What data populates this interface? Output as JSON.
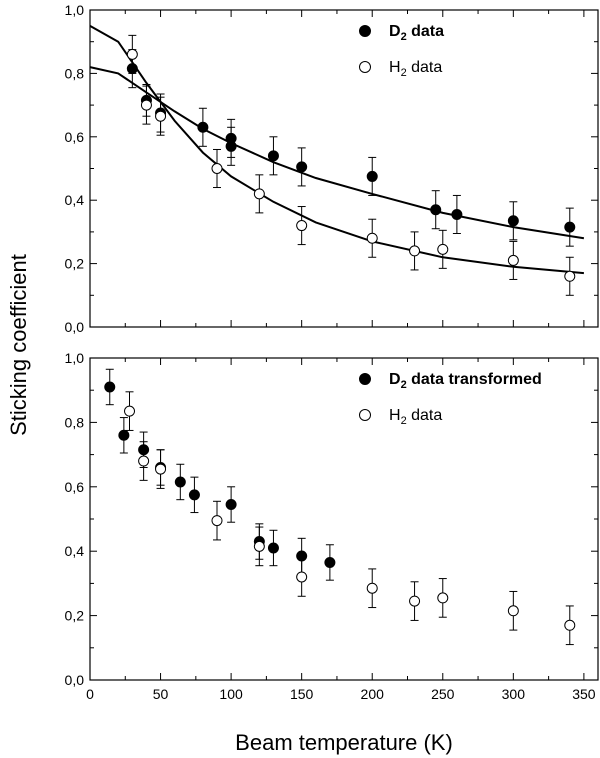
{
  "chart_data": [
    {
      "type": "scatter",
      "panel": "top",
      "xlim": [
        0,
        360
      ],
      "ylim": [
        0.0,
        1.0
      ],
      "yticks": [
        "0,0",
        "0,2",
        "0,4",
        "0,6",
        "0,8",
        "1,0"
      ],
      "legend_position": "top-right",
      "series": [
        {
          "name": "D",
          "name_sub": "2",
          "name_suffix": " data",
          "bold": true,
          "marker": "filled-circle",
          "x": [
            30,
            40,
            50,
            80,
            100,
            100,
            130,
            150,
            200,
            245,
            260,
            300,
            340
          ],
          "y": [
            0.815,
            0.715,
            0.675,
            0.63,
            0.595,
            0.57,
            0.54,
            0.505,
            0.475,
            0.37,
            0.355,
            0.335,
            0.315
          ],
          "err": [
            0.06,
            0.05,
            0.06,
            0.06,
            0.06,
            0.06,
            0.06,
            0.06,
            0.06,
            0.06,
            0.06,
            0.06,
            0.06
          ]
        },
        {
          "name": "H",
          "name_sub": "2",
          "name_suffix": " data",
          "bold": false,
          "marker": "open-circle",
          "x": [
            30,
            40,
            50,
            90,
            120,
            150,
            200,
            230,
            250,
            300,
            340
          ],
          "y": [
            0.86,
            0.7,
            0.665,
            0.5,
            0.42,
            0.32,
            0.28,
            0.24,
            0.245,
            0.21,
            0.16
          ],
          "err": [
            0.06,
            0.06,
            0.06,
            0.06,
            0.06,
            0.06,
            0.06,
            0.06,
            0.06,
            0.06,
            0.06
          ]
        }
      ],
      "fits": [
        {
          "for": "D2",
          "x": [
            0,
            20,
            40,
            60,
            80,
            100,
            130,
            160,
            200,
            250,
            300,
            350
          ],
          "y": [
            0.82,
            0.8,
            0.74,
            0.68,
            0.625,
            0.58,
            0.52,
            0.47,
            0.42,
            0.36,
            0.315,
            0.28
          ]
        },
        {
          "for": "H2",
          "x": [
            0,
            20,
            40,
            60,
            80,
            100,
            130,
            160,
            200,
            250,
            300,
            350
          ],
          "y": [
            0.95,
            0.9,
            0.77,
            0.65,
            0.55,
            0.475,
            0.395,
            0.33,
            0.27,
            0.22,
            0.19,
            0.17
          ]
        }
      ]
    },
    {
      "type": "scatter",
      "panel": "bottom",
      "xlim": [
        0,
        360
      ],
      "ylim": [
        0.0,
        1.0
      ],
      "xticks": [
        "0",
        "50",
        "100",
        "150",
        "200",
        "250",
        "300",
        "350"
      ],
      "yticks": [
        "0,0",
        "0,2",
        "0,4",
        "0,6",
        "0,8",
        "1,0"
      ],
      "legend_position": "top-right",
      "xlabel": "Beam temperature (K)",
      "series": [
        {
          "name": "D",
          "name_sub": "2",
          "name_suffix": " data transformed",
          "bold": true,
          "marker": "filled-circle",
          "x": [
            14,
            24,
            38,
            50,
            64,
            74,
            100,
            120,
            130,
            150,
            170
          ],
          "y": [
            0.91,
            0.76,
            0.715,
            0.66,
            0.615,
            0.575,
            0.545,
            0.43,
            0.41,
            0.385,
            0.365
          ],
          "err": [
            0.055,
            0.055,
            0.055,
            0.055,
            0.055,
            0.055,
            0.055,
            0.055,
            0.055,
            0.055,
            0.055
          ]
        },
        {
          "name": "H",
          "name_sub": "2",
          "name_suffix": " data",
          "bold": false,
          "marker": "open-circle",
          "x": [
            28,
            38,
            50,
            90,
            120,
            150,
            200,
            230,
            250,
            300,
            340
          ],
          "y": [
            0.835,
            0.68,
            0.655,
            0.495,
            0.415,
            0.32,
            0.285,
            0.245,
            0.255,
            0.215,
            0.17
          ],
          "err": [
            0.06,
            0.06,
            0.06,
            0.06,
            0.06,
            0.06,
            0.06,
            0.06,
            0.06,
            0.06,
            0.06
          ]
        }
      ]
    }
  ],
  "axes": {
    "ylabel": "Sticking coefficient",
    "xlabel": "Beam temperature (K)"
  },
  "colors": {
    "marker": "#000000",
    "open_fill": "#ffffff",
    "line": "#000000"
  }
}
